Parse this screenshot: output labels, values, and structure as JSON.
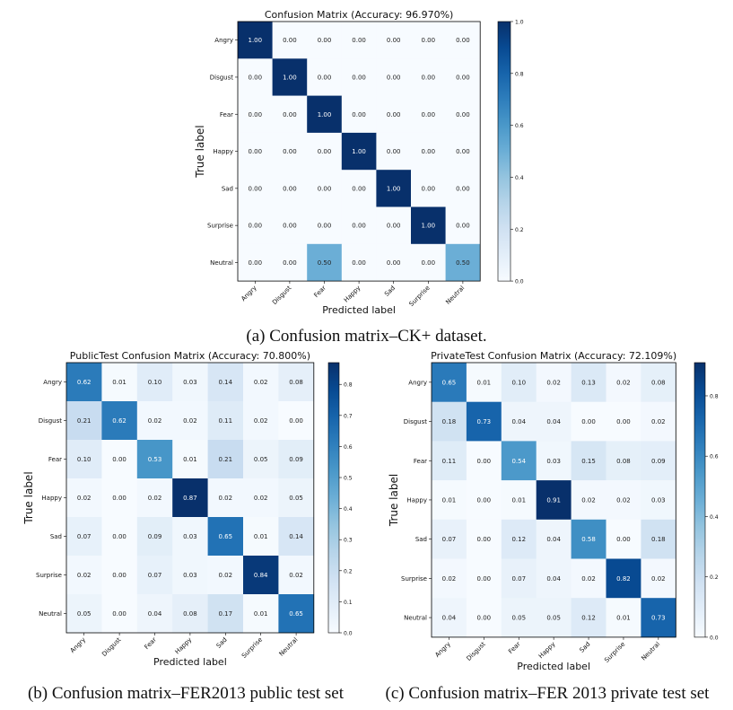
{
  "chart_data": [
    {
      "type": "heatmap",
      "title": "Confusion Matrix (Accuracy: 96.970%)",
      "xlabel": "Predicted label",
      "ylabel": "True label",
      "labels": [
        "Angry",
        "Disgust",
        "Fear",
        "Happy",
        "Sad",
        "Surprise",
        "Neutral"
      ],
      "matrix": [
        [
          1.0,
          0.0,
          0.0,
          0.0,
          0.0,
          0.0,
          0.0
        ],
        [
          0.0,
          1.0,
          0.0,
          0.0,
          0.0,
          0.0,
          0.0
        ],
        [
          0.0,
          0.0,
          1.0,
          0.0,
          0.0,
          0.0,
          0.0
        ],
        [
          0.0,
          0.0,
          0.0,
          1.0,
          0.0,
          0.0,
          0.0
        ],
        [
          0.0,
          0.0,
          0.0,
          0.0,
          1.0,
          0.0,
          0.0
        ],
        [
          0.0,
          0.0,
          0.0,
          0.0,
          0.0,
          1.0,
          0.0
        ],
        [
          0.0,
          0.0,
          0.5,
          0.0,
          0.0,
          0.0,
          0.5
        ]
      ],
      "colorbar": {
        "min": 0.0,
        "max": 1.0,
        "ticks": [
          "0.0",
          "0.2",
          "0.4",
          "0.6",
          "0.8",
          "1.0"
        ]
      },
      "caption": "(a) Confusion matrix–CK+ dataset."
    },
    {
      "type": "heatmap",
      "title": "PublicTest Confusion Matrix (Accuracy: 70.800%)",
      "xlabel": "Predicted label",
      "ylabel": "True label",
      "labels": [
        "Angry",
        "Disgust",
        "Fear",
        "Happy",
        "Sad",
        "Surprise",
        "Neutral"
      ],
      "matrix": [
        [
          0.62,
          0.01,
          0.1,
          0.03,
          0.14,
          0.02,
          0.08
        ],
        [
          0.21,
          0.62,
          0.02,
          0.02,
          0.11,
          0.02,
          0.0
        ],
        [
          0.1,
          0.0,
          0.53,
          0.01,
          0.21,
          0.05,
          0.09
        ],
        [
          0.02,
          0.0,
          0.02,
          0.87,
          0.02,
          0.02,
          0.05
        ],
        [
          0.07,
          0.0,
          0.09,
          0.03,
          0.65,
          0.01,
          0.14
        ],
        [
          0.02,
          0.0,
          0.07,
          0.03,
          0.02,
          0.84,
          0.02
        ],
        [
          0.05,
          0.0,
          0.04,
          0.08,
          0.17,
          0.01,
          0.65
        ]
      ],
      "colorbar": {
        "min": 0.0,
        "max": 0.87,
        "ticks": [
          "0.0",
          "0.1",
          "0.2",
          "0.3",
          "0.4",
          "0.5",
          "0.6",
          "0.7",
          "0.8"
        ]
      },
      "caption": "(b) Confusion matrix–FER2013 public test set"
    },
    {
      "type": "heatmap",
      "title": "PrivateTest Confusion Matrix (Accuracy: 72.109%)",
      "xlabel": "Predicted label",
      "ylabel": "True label",
      "labels": [
        "Angry",
        "Disgust",
        "Fear",
        "Happy",
        "Sad",
        "Surprise",
        "Neutral"
      ],
      "matrix": [
        [
          0.65,
          0.01,
          0.1,
          0.02,
          0.13,
          0.02,
          0.08
        ],
        [
          0.18,
          0.73,
          0.04,
          0.04,
          0.0,
          0.0,
          0.02
        ],
        [
          0.11,
          0.0,
          0.54,
          0.03,
          0.15,
          0.08,
          0.09
        ],
        [
          0.01,
          0.0,
          0.01,
          0.91,
          0.02,
          0.02,
          0.03
        ],
        [
          0.07,
          0.0,
          0.12,
          0.04,
          0.58,
          0.0,
          0.18
        ],
        [
          0.02,
          0.0,
          0.07,
          0.04,
          0.02,
          0.82,
          0.02
        ],
        [
          0.04,
          0.0,
          0.05,
          0.05,
          0.12,
          0.01,
          0.73
        ]
      ],
      "colorbar": {
        "min": 0.0,
        "max": 0.91,
        "ticks": [
          "0.0",
          "0.2",
          "0.4",
          "0.6",
          "0.8"
        ]
      },
      "caption": "(c) Confusion matrix–FER 2013 private test set"
    }
  ]
}
